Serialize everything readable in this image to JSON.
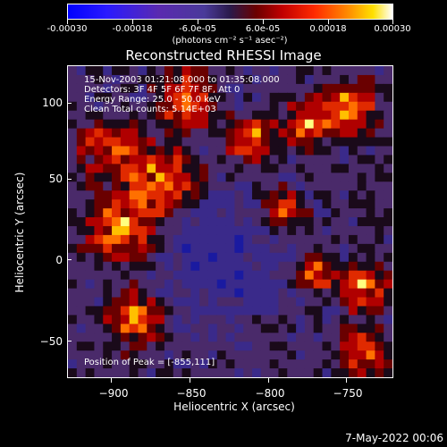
{
  "colorbar": {
    "ticks": [
      "-0.00030",
      "-0.00018",
      "-6.0e-05",
      "6.0e-05",
      "0.00018",
      "0.00030"
    ],
    "unit": "(photons cm⁻² s⁻¹ asec⁻²)"
  },
  "title": "Reconstructed RHESSI Image",
  "info": {
    "time": "15-Nov-2003 01:21:08.000 to 01:35:08.000",
    "detectors": "Detectors: 3F 4F 5F 6F 7F 8F, Att 0",
    "energy": "Energy Range: 25.0 - 50.0 keV",
    "clean": "Clean     Total counts: 5.14E+03",
    "peak": "Position of Peak = [-855,111]"
  },
  "axes": {
    "xlabel": "Heliocentric X (arcsec)",
    "ylabel": "Heliocentric Y (arcsec)",
    "xticks": [
      "−900",
      "−850",
      "−800",
      "−750"
    ],
    "yticks": [
      "100",
      "50",
      "0",
      "−50"
    ]
  },
  "date": "7-May-2022 00:06"
}
